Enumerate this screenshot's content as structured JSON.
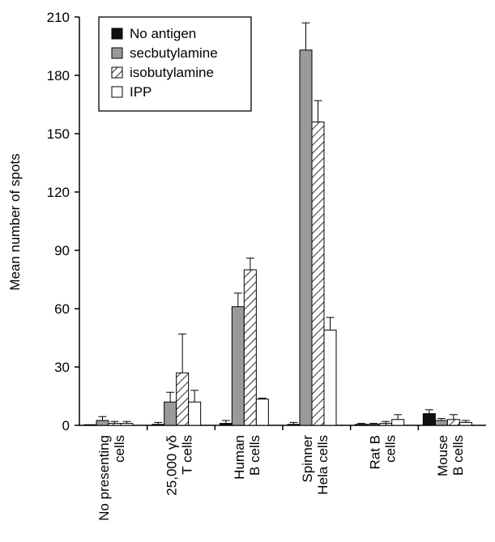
{
  "chart_data": {
    "type": "bar",
    "title": "",
    "ylabel": "Mean number of spots",
    "xlabel": "",
    "ylim": [
      0,
      210
    ],
    "yticks": [
      0,
      30,
      60,
      90,
      120,
      150,
      180,
      210
    ],
    "grid": false,
    "legend_position": "top-left",
    "categories": [
      [
        "No presenting",
        "cells"
      ],
      [
        "25,000 γδ",
        "T cells"
      ],
      [
        "Human",
        "B cells"
      ],
      [
        "Spinner",
        "Hela cells"
      ],
      [
        "Rat B",
        "cells"
      ],
      [
        "Mouse",
        "B cells"
      ]
    ],
    "series": [
      {
        "name": "No antigen",
        "fill": "solid-black",
        "color": "#111111",
        "values": [
          0,
          0.5,
          1,
          0.5,
          0.5,
          6
        ],
        "errors": [
          0,
          1,
          1.5,
          1,
          0.5,
          2
        ]
      },
      {
        "name": "secbutylamine",
        "fill": "gray",
        "color": "#9a9a9a",
        "values": [
          2.5,
          12,
          61,
          193,
          0.5,
          2.5
        ],
        "errors": [
          2,
          5,
          7,
          14,
          0.5,
          1
        ]
      },
      {
        "name": "isobutylamine",
        "fill": "hatched",
        "color": "#ffffff",
        "values": [
          1,
          27,
          80,
          156,
          1,
          3
        ],
        "errors": [
          1,
          20,
          6,
          11,
          1,
          2.5
        ]
      },
      {
        "name": "IPP",
        "fill": "white",
        "color": "#ffffff",
        "values": [
          1,
          12,
          13.5,
          49,
          3,
          1.5
        ],
        "errors": [
          1,
          6,
          0.5,
          6.5,
          2.5,
          1
        ]
      }
    ]
  }
}
